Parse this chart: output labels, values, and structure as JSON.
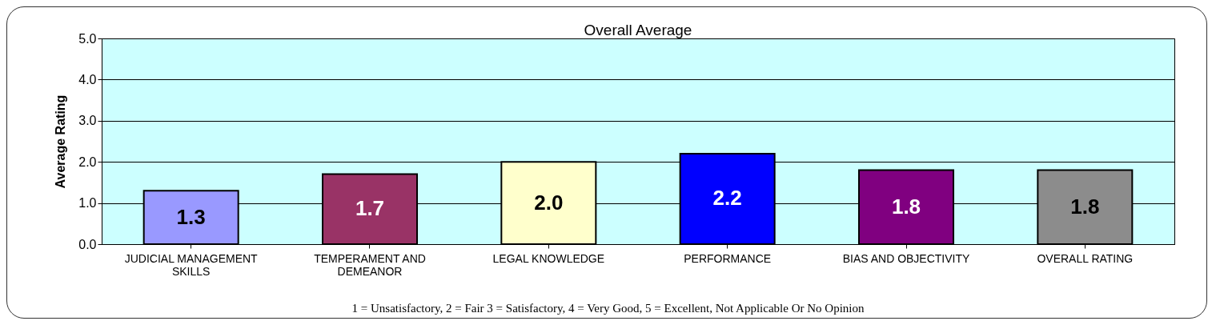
{
  "chart_data": {
    "type": "bar",
    "title": "Overall Average",
    "ylabel": "Average Rating",
    "categories": [
      "JUDICIAL MANAGEMENT SKILLS",
      "TEMPERAMENT AND DEMEANOR",
      "LEGAL KNOWLEDGE",
      "PERFORMANCE",
      "BIAS AND OBJECTIVITY",
      "OVERALL RATING"
    ],
    "values": [
      1.3,
      1.7,
      2.0,
      2.2,
      1.8,
      1.8
    ],
    "colors": [
      "#9999ff",
      "#993366",
      "#ffffcc",
      "#0000ff",
      "#800080",
      "#8c8c8c"
    ],
    "ylim": [
      0,
      5
    ],
    "yticks": [
      {
        "value": 0,
        "label": "0.0"
      },
      {
        "value": 1,
        "label": "1.0"
      },
      {
        "value": 2,
        "label": "2.0"
      },
      {
        "value": 3,
        "label": "3.0"
      },
      {
        "value": 4,
        "label": "4.0"
      },
      {
        "value": 5,
        "label": "5.0"
      }
    ],
    "grid": "y",
    "value_labels": [
      "1.3",
      "1.7",
      "2.0",
      "2.2",
      "1.8",
      "1.8"
    ],
    "annotations": [
      "1 = Unsatisfactory, 2 = Fair 3 = Satisfactory, 4 = Very Good, 5 = Excellent, Not Applicable Or No Opinion"
    ]
  }
}
